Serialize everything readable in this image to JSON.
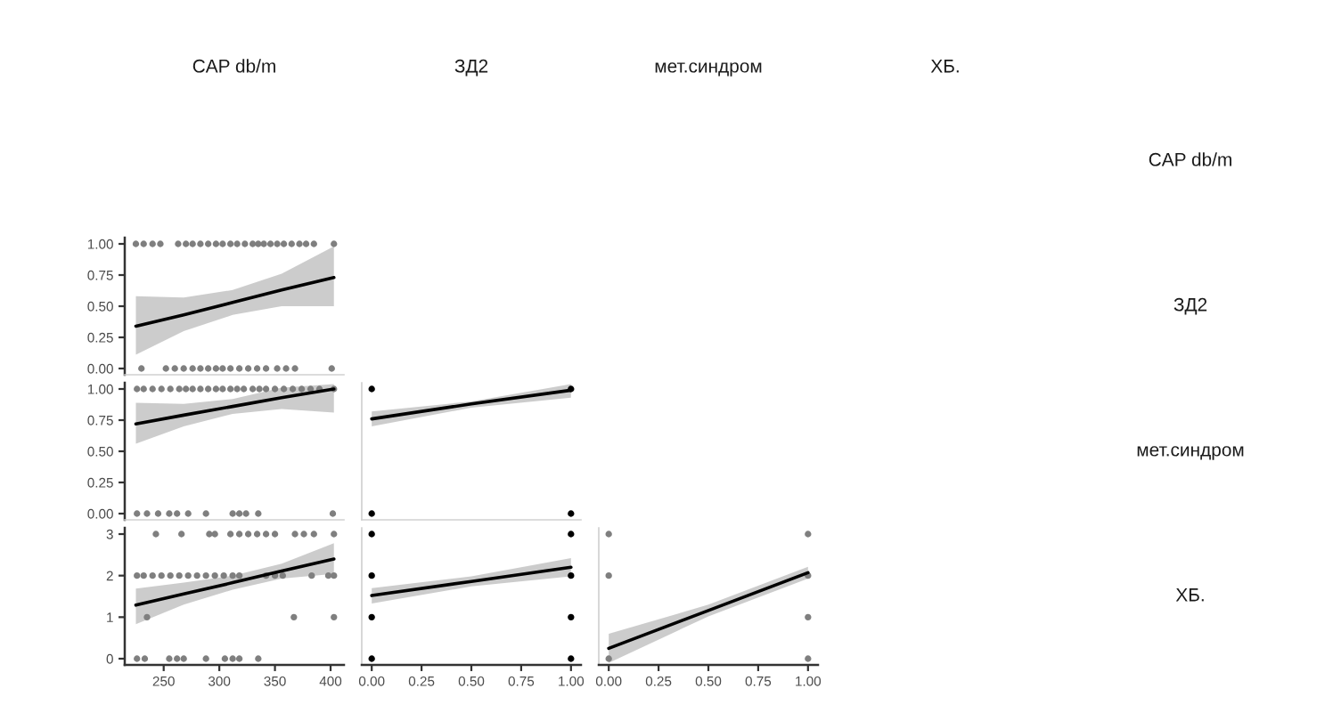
{
  "chart_data": [
    {
      "type": "other",
      "categories": [
        "CAP db/m",
        "ЗД2",
        "мет.синдром",
        "ХБ."
      ],
      "y_categories": [
        "CAP db/m",
        "ЗД2",
        "мет.синдром",
        "ХБ."
      ]
    },
    {
      "type": "scatter",
      "tick_labels": "y",
      "xlim": [
        215,
        412
      ],
      "ylim": [
        -0.05,
        1.05
      ],
      "yticks": [
        {
          "value": 0,
          "label": "0.00"
        },
        {
          "value": 0.25,
          "label": "0.25"
        },
        {
          "value": 0.5,
          "label": "0.50"
        },
        {
          "value": 0.75,
          "label": "0.75"
        },
        {
          "value": 1,
          "label": "1.00"
        }
      ],
      "series": [
        {
          "type": "scatter",
          "marker": "circle",
          "color": "#7f7f7f",
          "x": [
            225,
            232,
            240,
            247,
            263,
            270,
            276,
            283,
            290,
            297,
            303,
            310,
            316,
            323,
            330,
            335,
            340,
            346,
            352,
            358,
            365,
            372,
            378,
            385,
            403,
            230,
            252,
            260,
            268,
            276,
            283,
            290,
            297,
            303,
            310,
            318,
            326,
            334,
            342,
            352,
            360,
            368,
            401
          ],
          "values": [
            1,
            1,
            1,
            1,
            1,
            1,
            1,
            1,
            1,
            1,
            1,
            1,
            1,
            1,
            1,
            1,
            1,
            1,
            1,
            1,
            1,
            1,
            1,
            1,
            1,
            0,
            0,
            0,
            0,
            0,
            0,
            0,
            0,
            0,
            0,
            0,
            0,
            0,
            0,
            0,
            0,
            0,
            0
          ]
        },
        {
          "type": "line",
          "color": "#000000",
          "x": [
            225,
            268,
            312,
            356,
            403
          ],
          "values": [
            0.34,
            0.43,
            0.53,
            0.63,
            0.73
          ],
          "lower": [
            0.11,
            0.3,
            0.43,
            0.5,
            0.5
          ],
          "upper": [
            0.58,
            0.57,
            0.63,
            0.76,
            0.98
          ]
        }
      ]
    },
    {
      "type": "scatter",
      "tick_labels": "y",
      "xlim": [
        215,
        412
      ],
      "ylim": [
        -0.05,
        1.05
      ],
      "yticks": [
        {
          "value": 0,
          "label": "0.00"
        },
        {
          "value": 0.25,
          "label": "0.25"
        },
        {
          "value": 0.5,
          "label": "0.50"
        },
        {
          "value": 0.75,
          "label": "0.75"
        },
        {
          "value": 1,
          "label": "1.00"
        }
      ],
      "series": [
        {
          "type": "scatter",
          "marker": "circle",
          "color": "#7f7f7f",
          "x": [
            226,
            232,
            240,
            248,
            256,
            264,
            270,
            276,
            283,
            290,
            297,
            303,
            310,
            316,
            322,
            330,
            336,
            342,
            350,
            358,
            366,
            374,
            382,
            390,
            403,
            226,
            235,
            245,
            255,
            262,
            272,
            288,
            312,
            318,
            324,
            335,
            402
          ],
          "values": [
            1,
            1,
            1,
            1,
            1,
            1,
            1,
            1,
            1,
            1,
            1,
            1,
            1,
            1,
            1,
            1,
            1,
            1,
            1,
            1,
            1,
            1,
            1,
            1,
            1,
            0,
            0,
            0,
            0,
            0,
            0,
            0,
            0,
            0,
            0,
            0,
            0
          ]
        },
        {
          "type": "line",
          "color": "#000000",
          "x": [
            225,
            268,
            312,
            356,
            403
          ],
          "values": [
            0.72,
            0.79,
            0.86,
            0.93,
            1.0
          ],
          "lower": [
            0.56,
            0.7,
            0.8,
            0.84,
            0.81
          ],
          "upper": [
            0.89,
            0.88,
            0.92,
            1.01,
            1.04
          ]
        }
      ]
    },
    {
      "type": "scatter",
      "tick_labels": false,
      "xlim": [
        -0.05,
        1.05
      ],
      "ylim": [
        -0.05,
        1.05
      ],
      "series": [
        {
          "type": "scatter",
          "marker": "circle",
          "color": "#000000",
          "x": [
            0,
            0,
            1,
            1
          ],
          "values": [
            1,
            0,
            1,
            0
          ]
        },
        {
          "type": "line",
          "color": "#000000",
          "x": [
            0,
            0.5,
            1
          ],
          "values": [
            0.76,
            0.88,
            0.99
          ],
          "lower": [
            0.7,
            0.85,
            0.93
          ],
          "upper": [
            0.82,
            0.9,
            1.04
          ]
        }
      ]
    },
    {
      "type": "scatter",
      "xlim": [
        215,
        412
      ],
      "xticks": [
        250,
        300,
        350,
        400
      ],
      "ylim": [
        -0.15,
        3.15
      ],
      "yticks": [
        0,
        1,
        2,
        3
      ],
      "series": [
        {
          "type": "scatter",
          "marker": "circle",
          "color": "#7f7f7f",
          "x": [
            243,
            266,
            291,
            296,
            310,
            318,
            326,
            334,
            342,
            350,
            368,
            376,
            385,
            403,
            226,
            232,
            240,
            248,
            256,
            264,
            272,
            280,
            288,
            296,
            304,
            312,
            318,
            342,
            350,
            357,
            383,
            398,
            403,
            235,
            367,
            403,
            226,
            233,
            255,
            262,
            268,
            288,
            305,
            312,
            318,
            335
          ],
          "values": [
            3,
            3,
            3,
            3,
            3,
            3,
            3,
            3,
            3,
            3,
            3,
            3,
            3,
            3,
            2,
            2,
            2,
            2,
            2,
            2,
            2,
            2,
            2,
            2,
            2,
            2,
            2,
            2,
            2,
            2,
            2,
            2,
            2,
            1,
            1,
            1,
            0,
            0,
            0,
            0,
            0,
            0,
            0,
            0,
            0,
            0
          ]
        },
        {
          "type": "line",
          "color": "#000000",
          "x": [
            225,
            268,
            312,
            356,
            403
          ],
          "values": [
            1.29,
            1.56,
            1.83,
            2.11,
            2.4
          ],
          "lower": [
            0.83,
            1.3,
            1.66,
            1.93,
            2.04
          ],
          "upper": [
            1.69,
            1.83,
            2.0,
            2.29,
            2.78
          ]
        }
      ]
    },
    {
      "type": "scatter",
      "tick_labels": "x",
      "xlim": [
        -0.05,
        1.05
      ],
      "xticks": [
        {
          "value": 0,
          "label": "0.00"
        },
        {
          "value": 0.25,
          "label": "0.25"
        },
        {
          "value": 0.5,
          "label": "0.50"
        },
        {
          "value": 0.75,
          "label": "0.75"
        },
        {
          "value": 1,
          "label": "1.00"
        }
      ],
      "ylim": [
        -0.15,
        3.15
      ],
      "series": [
        {
          "type": "scatter",
          "marker": "circle",
          "color": "#000000",
          "x": [
            0,
            0,
            0,
            0,
            1,
            1,
            1,
            1
          ],
          "values": [
            0,
            1,
            2,
            3,
            0,
            1,
            2,
            3
          ]
        },
        {
          "type": "line",
          "color": "#000000",
          "x": [
            0,
            0.5,
            1
          ],
          "values": [
            1.52,
            1.86,
            2.2
          ],
          "lower": [
            1.33,
            1.74,
            1.98
          ],
          "upper": [
            1.7,
            1.98,
            2.42
          ]
        }
      ]
    },
    {
      "type": "scatter",
      "tick_labels": "x",
      "xlim": [
        -0.05,
        1.05
      ],
      "xticks": [
        {
          "value": 0,
          "label": "0.00"
        },
        {
          "value": 0.25,
          "label": "0.25"
        },
        {
          "value": 0.5,
          "label": "0.50"
        },
        {
          "value": 0.75,
          "label": "0.75"
        },
        {
          "value": 1,
          "label": "1.00"
        }
      ],
      "ylim": [
        -0.15,
        3.15
      ],
      "series": [
        {
          "type": "scatter",
          "marker": "circle",
          "color": "#7f7f7f",
          "x": [
            0,
            0,
            0,
            1,
            1,
            1,
            1
          ],
          "values": [
            0,
            2,
            3,
            0,
            1,
            2,
            3
          ]
        },
        {
          "type": "line",
          "color": "#000000",
          "x": [
            0,
            0.5,
            1
          ],
          "values": [
            0.25,
            1.16,
            2.07
          ],
          "lower": [
            -0.1,
            1.02,
            1.93
          ],
          "upper": [
            0.6,
            1.3,
            2.21
          ]
        }
      ]
    }
  ]
}
